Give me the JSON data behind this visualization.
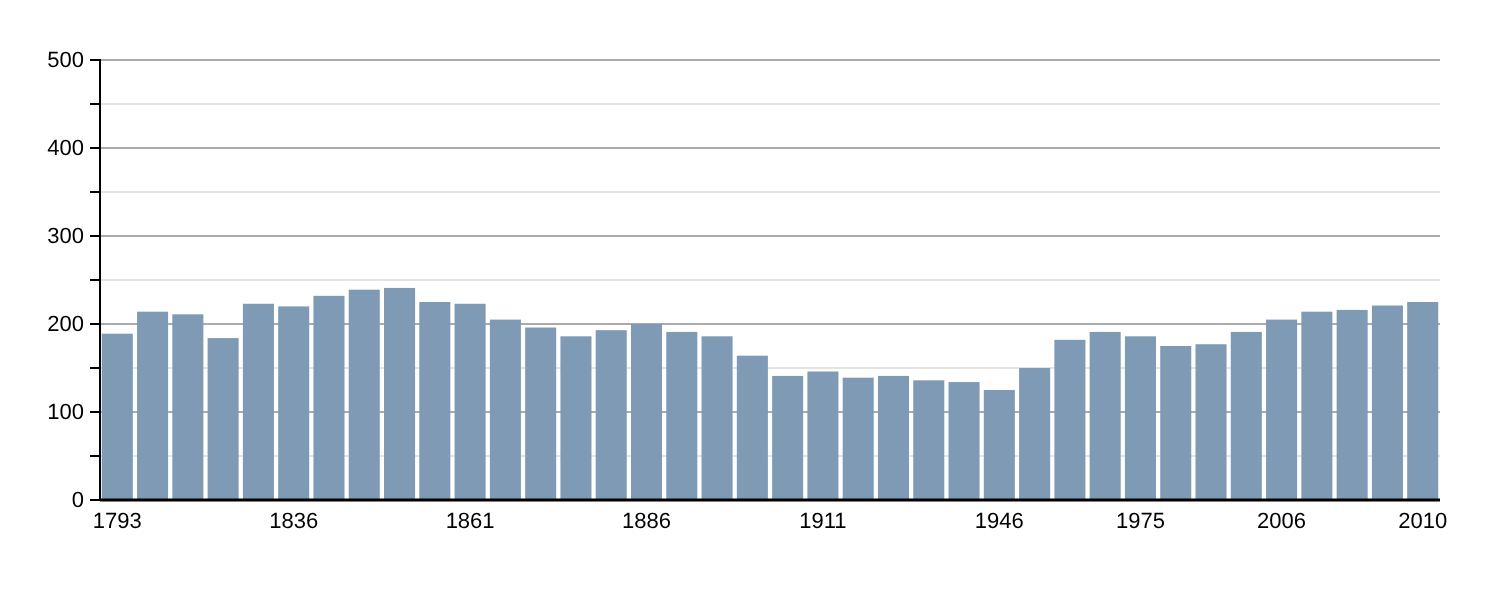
{
  "chart_data": {
    "type": "bar",
    "categories": [
      "1793",
      null,
      null,
      null,
      null,
      "1836",
      null,
      null,
      null,
      null,
      "1861",
      null,
      null,
      null,
      null,
      "1886",
      null,
      null,
      null,
      null,
      "1911",
      null,
      null,
      null,
      null,
      "1946",
      null,
      null,
      null,
      "1975",
      null,
      null,
      null,
      "2006",
      null,
      null,
      null,
      "2010"
    ],
    "values": [
      189,
      214,
      211,
      184,
      223,
      220,
      232,
      239,
      241,
      225,
      223,
      205,
      196,
      186,
      193,
      200,
      191,
      186,
      164,
      141,
      146,
      139,
      141,
      136,
      134,
      125,
      150,
      182,
      191,
      186,
      175,
      177,
      191,
      205,
      214,
      216,
      221,
      225
    ],
    "color": "#7f9ab4",
    "ylim": [
      0,
      500
    ],
    "yticks": [
      0,
      {
        "value": 50,
        "label": null
      },
      100,
      {
        "value": 150,
        "label": null
      },
      200,
      {
        "value": 250,
        "label": null
      },
      300,
      {
        "value": 350,
        "label": null
      },
      400,
      {
        "value": 450,
        "label": null
      },
      500
    ],
    "grid": true
  }
}
